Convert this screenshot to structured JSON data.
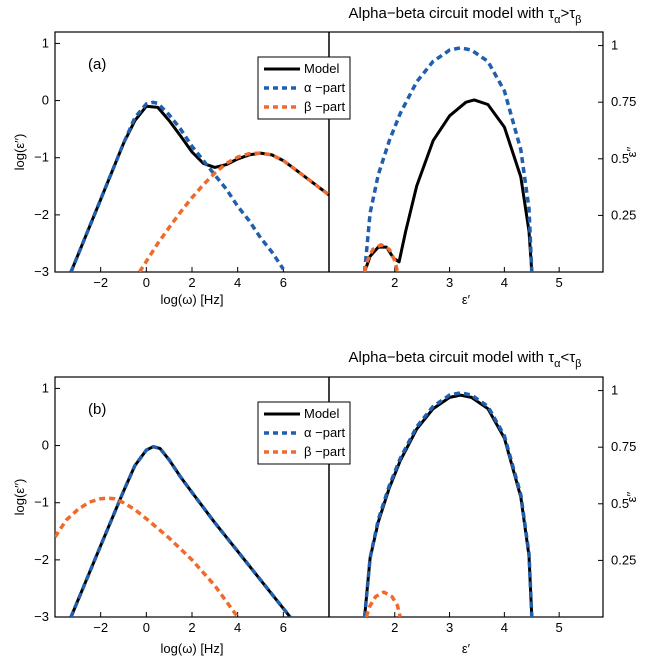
{
  "colors": {
    "model": "#000000",
    "alpha": "#1f5fae",
    "beta": "#ef6a2c"
  },
  "chart_data": [
    {
      "type": "line",
      "title_main": "Alpha−beta circuit model with τ",
      "title_sub1": "α",
      "title_op": ">τ",
      "title_sub2": "β",
      "panel_label": "(a)",
      "legend": {
        "model": "Model",
        "alpha": "α −part",
        "beta": "β −part",
        "placement": "top-center"
      },
      "left": {
        "xlabel": "log(ω) [Hz]",
        "ylabel": "log(ε′′)",
        "xlim": [
          -4,
          8
        ],
        "ylim": [
          -3,
          1.2
        ],
        "xticks": [
          -2,
          0,
          2,
          4,
          6
        ],
        "xtick_labels": [
          "−2",
          "0",
          "2",
          "4",
          "6"
        ],
        "yticks": [
          -3,
          -2,
          -1,
          0,
          1
        ],
        "ytick_labels": [
          "−3",
          "−2",
          "−1",
          "0",
          "1"
        ],
        "series": [
          {
            "name": "Model",
            "style": "model",
            "x": [
              -3.3,
              -2,
              -1,
              -0.5,
              0,
              0.5,
              1,
              1.5,
              2,
              2.5,
              3,
              3.5,
              4,
              4.5,
              5,
              5.5,
              6,
              6.5,
              7,
              8
            ],
            "y": [
              -3.0,
              -1.73,
              -0.75,
              -0.35,
              -0.1,
              -0.12,
              -0.35,
              -0.62,
              -0.9,
              -1.1,
              -1.17,
              -1.12,
              -1.02,
              -0.95,
              -0.92,
              -0.95,
              -1.05,
              -1.2,
              -1.35,
              -1.65
            ]
          },
          {
            "name": "α −part",
            "style": "alpha",
            "x": [
              -3.3,
              -2,
              -1,
              -0.5,
              0,
              0.3,
              0.5,
              1,
              1.5,
              2,
              2.5,
              3,
              3.5,
              4,
              4.5,
              5,
              5.5,
              6
            ],
            "y": [
              -3.0,
              -1.73,
              -0.75,
              -0.3,
              -0.06,
              -0.03,
              -0.05,
              -0.25,
              -0.5,
              -0.8,
              -1.05,
              -1.3,
              -1.55,
              -1.85,
              -2.1,
              -2.4,
              -2.65,
              -2.95
            ]
          },
          {
            "name": "β −part",
            "style": "beta",
            "x": [
              -0.3,
              0.5,
              1,
              1.5,
              2,
              2.5,
              3,
              3.5,
              4,
              4.5,
              5,
              5.5,
              6,
              6.5,
              7,
              8
            ],
            "y": [
              -3.0,
              -2.5,
              -2.22,
              -1.95,
              -1.7,
              -1.47,
              -1.27,
              -1.1,
              -0.99,
              -0.93,
              -0.92,
              -0.95,
              -1.05,
              -1.2,
              -1.35,
              -1.65
            ]
          }
        ]
      },
      "right": {
        "xlabel": "ε′",
        "ylabel": "ε′′",
        "xlim": [
          0.8,
          5.8
        ],
        "ylim": [
          0,
          1.06
        ],
        "xticks": [
          2,
          3,
          4,
          5
        ],
        "xtick_labels": [
          "2",
          "3",
          "4",
          "5"
        ],
        "yticks": [
          0.25,
          0.5,
          0.75,
          1
        ],
        "ytick_labels": [
          "0.25",
          "0.5",
          "0.75",
          "1"
        ],
        "series": [
          {
            "name": "Model",
            "style": "model",
            "x": [
              1.45,
              1.55,
              1.7,
              1.85,
              1.98,
              2.08,
              2.2,
              2.4,
              2.7,
              3.0,
              3.3,
              3.45,
              3.7,
              4.0,
              4.3,
              4.45,
              4.5
            ],
            "y": [
              0.0,
              0.07,
              0.11,
              0.11,
              0.06,
              0.045,
              0.18,
              0.38,
              0.58,
              0.69,
              0.75,
              0.76,
              0.74,
              0.64,
              0.42,
              0.18,
              0.0
            ]
          },
          {
            "name": "α −part",
            "style": "alpha",
            "x": [
              1.45,
              1.55,
              1.7,
              1.9,
              2.1,
              2.4,
              2.7,
              3.0,
              3.2,
              3.4,
              3.7,
              4.0,
              4.3,
              4.45,
              4.5
            ],
            "y": [
              0.0,
              0.26,
              0.43,
              0.58,
              0.7,
              0.84,
              0.93,
              0.98,
              0.99,
              0.98,
              0.93,
              0.8,
              0.54,
              0.28,
              0.0
            ]
          },
          {
            "name": "β −part",
            "style": "beta",
            "x": [
              1.45,
              1.5,
              1.6,
              1.75,
              1.9,
              2.0,
              2.05
            ],
            "y": [
              0.0,
              0.05,
              0.1,
              0.12,
              0.1,
              0.05,
              0.0
            ]
          }
        ]
      }
    },
    {
      "type": "line",
      "title_main": "Alpha−beta circuit model with τ",
      "title_sub1": "α",
      "title_op": "<τ",
      "title_sub2": "β",
      "panel_label": "(b)",
      "legend": {
        "model": "Model",
        "alpha": "α −part",
        "beta": "β −part",
        "placement": "top-center"
      },
      "left": {
        "xlabel": "log(ω) [Hz]",
        "ylabel": "log(ε′′)",
        "xlim": [
          -4,
          8
        ],
        "ylim": [
          -3,
          1.2
        ],
        "xticks": [
          -2,
          0,
          2,
          4,
          6
        ],
        "xtick_labels": [
          "−2",
          "0",
          "2",
          "4",
          "6"
        ],
        "yticks": [
          -3,
          -2,
          -1,
          0,
          1
        ],
        "ytick_labels": [
          "−3",
          "−2",
          "−1",
          "0",
          "1"
        ],
        "series": [
          {
            "name": "Model",
            "style": "model",
            "x": [
              -3.3,
              -2,
              -1,
              -0.5,
              0,
              0.3,
              0.6,
              1,
              1.5,
              2,
              3,
              4,
              5,
              6.3
            ],
            "y": [
              -3.0,
              -1.75,
              -0.8,
              -0.35,
              -0.08,
              -0.02,
              -0.05,
              -0.25,
              -0.55,
              -0.82,
              -1.35,
              -1.85,
              -2.35,
              -3.0
            ]
          },
          {
            "name": "α −part",
            "style": "alpha",
            "x": [
              -3.3,
              -2,
              -1,
              -0.5,
              0,
              0.3,
              0.6,
              1,
              1.5,
              2,
              3,
              4,
              5,
              6.3
            ],
            "y": [
              -3.0,
              -1.75,
              -0.8,
              -0.35,
              -0.08,
              -0.02,
              -0.05,
              -0.25,
              -0.55,
              -0.82,
              -1.35,
              -1.85,
              -2.35,
              -3.0
            ]
          },
          {
            "name": "β −part",
            "style": "beta",
            "x": [
              -4,
              -3.5,
              -3,
              -2.5,
              -2,
              -1.7,
              -1.4,
              -1,
              -0.5,
              0,
              0.5,
              1,
              2,
              3,
              4
            ],
            "y": [
              -1.6,
              -1.3,
              -1.12,
              -0.99,
              -0.93,
              -0.92,
              -0.93,
              -1.0,
              -1.12,
              -1.28,
              -1.45,
              -1.62,
              -2.0,
              -2.45,
              -3.0
            ]
          }
        ]
      },
      "right": {
        "xlabel": "ε′",
        "ylabel": "ε′′",
        "xlim": [
          0.8,
          5.8
        ],
        "ylim": [
          0,
          1.06
        ],
        "xticks": [
          2,
          3,
          4,
          5
        ],
        "xtick_labels": [
          "2",
          "3",
          "4",
          "5"
        ],
        "yticks": [
          0.25,
          0.5,
          0.75,
          1
        ],
        "ytick_labels": [
          "0.25",
          "0.5",
          "0.75",
          "1"
        ],
        "series": [
          {
            "name": "Model",
            "style": "model",
            "x": [
              1.45,
              1.55,
              1.7,
              1.9,
              2.1,
              2.4,
              2.7,
              3.0,
              3.2,
              3.4,
              3.7,
              4.0,
              4.3,
              4.45,
              4.5
            ],
            "y": [
              0.0,
              0.26,
              0.42,
              0.57,
              0.69,
              0.83,
              0.92,
              0.97,
              0.98,
              0.97,
              0.92,
              0.79,
              0.53,
              0.27,
              0.0
            ]
          },
          {
            "name": "α −part",
            "style": "alpha",
            "x": [
              1.45,
              1.55,
              1.7,
              1.9,
              2.1,
              2.4,
              2.7,
              3.0,
              3.2,
              3.4,
              3.7,
              4.0,
              4.3,
              4.45,
              4.5
            ],
            "y": [
              0.0,
              0.26,
              0.43,
              0.58,
              0.7,
              0.84,
              0.93,
              0.98,
              0.99,
              0.98,
              0.93,
              0.8,
              0.54,
              0.28,
              0.0
            ]
          },
          {
            "name": "β −part",
            "style": "beta",
            "x": [
              1.48,
              1.55,
              1.65,
              1.8,
              1.95,
              2.05,
              2.1
            ],
            "y": [
              0.0,
              0.05,
              0.09,
              0.11,
              0.09,
              0.05,
              0.0
            ]
          }
        ]
      }
    }
  ]
}
